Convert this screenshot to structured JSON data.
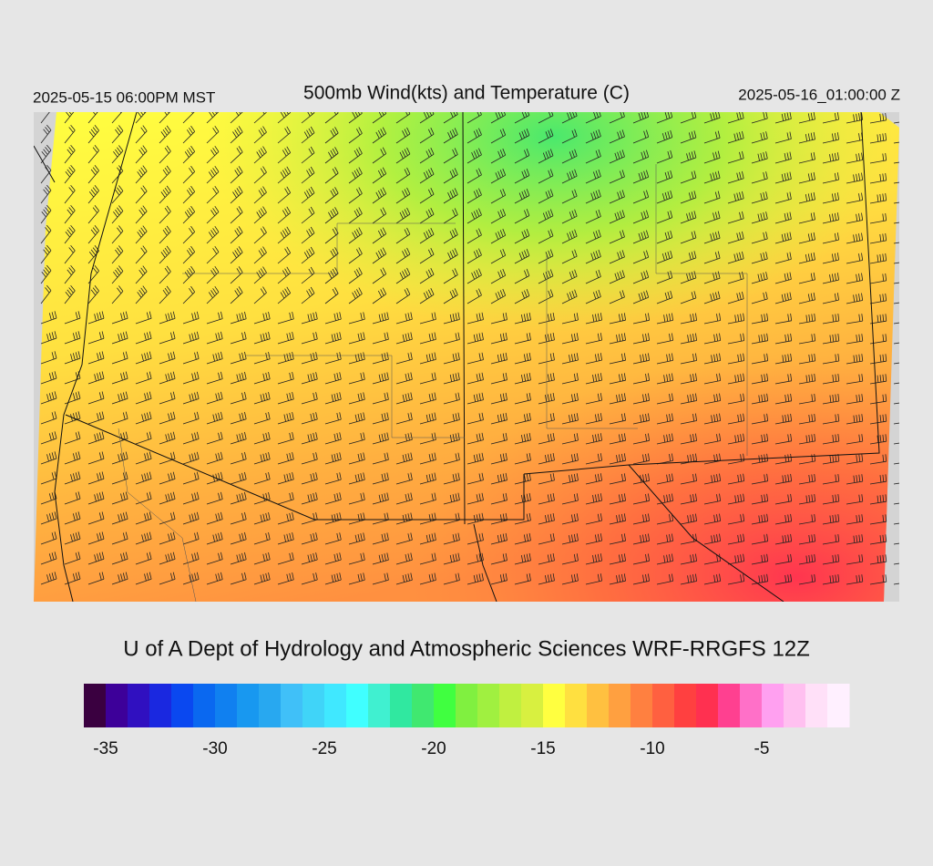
{
  "header": {
    "valid_local": "2025-05-15 06:00PM MST",
    "title": "500mb Wind(kts) and Temperature (C)",
    "valid_utc": "2025-05-16_01:00:00 Z"
  },
  "credit": "U of A Dept of Hydrology and Atmospheric Sciences WRF-RRGFS 12Z",
  "colorbar": {
    "range": [
      -36,
      -1
    ],
    "ticks": [
      -35,
      -30,
      -25,
      -20,
      -15,
      -10,
      -5
    ],
    "colors": [
      "#3a0040",
      "#3d0099",
      "#3010c0",
      "#1a28e0",
      "#0a48f0",
      "#0a68f0",
      "#1080f0",
      "#1898f0",
      "#28a8f0",
      "#40c0f8",
      "#40d4f8",
      "#40e8ff",
      "#40ffff",
      "#40f0d0",
      "#30e8a0",
      "#40e870",
      "#40ff40",
      "#80f040",
      "#a0f040",
      "#c0f040",
      "#d8f040",
      "#ffff40",
      "#ffe040",
      "#ffc040",
      "#ffa040",
      "#ff8040",
      "#ff6040",
      "#ff4040",
      "#ff3050",
      "#ff4090",
      "#ff70c8",
      "#ffa0f0",
      "#ffc0f0",
      "#ffe0f8",
      "#fff0ff"
    ]
  }
}
